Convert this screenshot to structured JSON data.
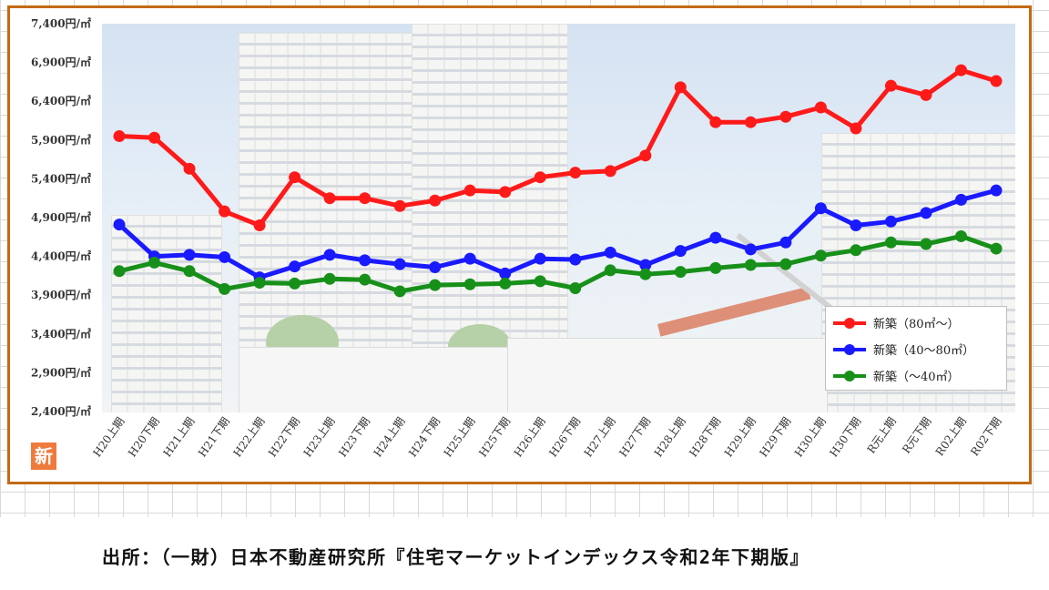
{
  "chart_data": {
    "type": "line",
    "title": "",
    "xlabel": "",
    "ylabel": "",
    "ylim": [
      2400,
      7400
    ],
    "yticks": [
      2400,
      2900,
      3400,
      3900,
      4400,
      4900,
      5400,
      5900,
      6400,
      6900,
      7400
    ],
    "ytick_labels": [
      "2,400円/㎡",
      "2,900円/㎡",
      "3,400円/㎡",
      "3,900円/㎡",
      "4,400円/㎡",
      "4,900円/㎡",
      "5,400円/㎡",
      "5,900円/㎡",
      "6,400円/㎡",
      "6,900円/㎡",
      "7,400円/㎡"
    ],
    "categories": [
      "H20上期",
      "H20下期",
      "H21上期",
      "H21下期",
      "H22上期",
      "H22下期",
      "H23上期",
      "H23下期",
      "H24上期",
      "H24下期",
      "H25上期",
      "H25下期",
      "H26上期",
      "H26下期",
      "H27上期",
      "H27下期",
      "H28上期",
      "H28下期",
      "H29上期",
      "H29下期",
      "H30上期",
      "H30下期",
      "R元上期",
      "R元下期",
      "R02上期",
      "R02下期"
    ],
    "grid": false,
    "legend_position": "bottom-right",
    "series": [
      {
        "name": "新築（80㎡～）",
        "color": "#ff1a1a",
        "values": [
          5950,
          5930,
          5530,
          4980,
          4800,
          5420,
          5150,
          5150,
          5050,
          5120,
          5250,
          5230,
          5420,
          5480,
          5500,
          5700,
          6580,
          6130,
          6130,
          6200,
          6320,
          6050,
          6600,
          6480,
          6800,
          6660
        ]
      },
      {
        "name": "新築（40～80㎡）",
        "color": "#1a1aff",
        "values": [
          4810,
          4400,
          4420,
          4390,
          4130,
          4270,
          4420,
          4350,
          4300,
          4260,
          4370,
          4180,
          4370,
          4360,
          4450,
          4290,
          4470,
          4640,
          4490,
          4580,
          5020,
          4800,
          4850,
          4960,
          5130,
          5250
        ]
      },
      {
        "name": "新築（～40㎡）",
        "color": "#17901a",
        "values": [
          4210,
          4320,
          4210,
          3980,
          4060,
          4050,
          4110,
          4100,
          3950,
          4030,
          4040,
          4050,
          4080,
          3990,
          4220,
          4170,
          4200,
          4250,
          4290,
          4300,
          4410,
          4480,
          4580,
          4560,
          4660,
          4500
        ]
      }
    ]
  },
  "logo_text": "新",
  "source": "出所：（一財）日本不動産研究所『住宅マーケットインデックス令和2年下期版』"
}
